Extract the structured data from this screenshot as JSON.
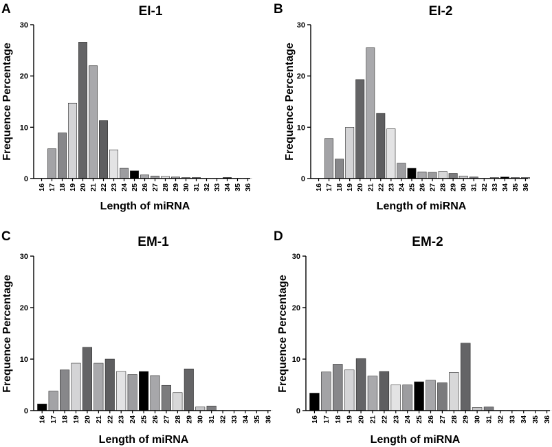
{
  "panels": [
    {
      "letter": "A",
      "chart_data": {
        "type": "bar",
        "title": "EI-1",
        "xlabel": "Length of miRNA",
        "ylabel": "Frequence Percentage",
        "ylim": [
          0,
          30
        ],
        "yticks": [
          "0",
          "10",
          "20",
          "30"
        ],
        "categories": [
          "16",
          "17",
          "18",
          "19",
          "20",
          "21",
          "22",
          "23",
          "24",
          "25",
          "26",
          "27",
          "28",
          "29",
          "30",
          "31",
          "32",
          "33",
          "34",
          "35",
          "36"
        ],
        "values": [
          0,
          5.8,
          8.9,
          14.7,
          26.6,
          22.0,
          11.3,
          5.6,
          2.0,
          1.5,
          0.7,
          0.5,
          0.4,
          0.3,
          0.2,
          0.2,
          0.1,
          0.1,
          0.2,
          0.1,
          0.1
        ],
        "colors": [
          "#d0d0d0",
          "#a3a3a6",
          "#87878a",
          "#d4d4d6",
          "#646466",
          "#a9a9ac",
          "#5e5e60",
          "#e3e3e4",
          "#9d9da0",
          "#000000",
          "#a7a7aa",
          "#9b9b9d",
          "#d8d8d9",
          "#9b9b9d",
          "#c6c6c8",
          "#7d7d80",
          "#d2d2d4",
          "#c8c8ca",
          "#000000",
          "#b4b4b6",
          "#a0a0a2"
        ]
      }
    },
    {
      "letter": "B",
      "chart_data": {
        "type": "bar",
        "title": "EI-2",
        "xlabel": "Length of miRNA",
        "ylabel": "Frequence Percentage",
        "ylim": [
          0,
          30
        ],
        "yticks": [
          "0",
          "10",
          "20",
          "30"
        ],
        "categories": [
          "16",
          "17",
          "18",
          "19",
          "20",
          "21",
          "22",
          "23",
          "24",
          "25",
          "26",
          "27",
          "28",
          "29",
          "30",
          "31",
          "32",
          "33",
          "34",
          "35",
          "36"
        ],
        "values": [
          0,
          7.8,
          3.8,
          10.0,
          19.3,
          25.5,
          12.7,
          9.7,
          3.0,
          2.0,
          1.3,
          1.2,
          1.4,
          1.0,
          0.5,
          0.3,
          0.1,
          0.2,
          0.3,
          0.2,
          0.2
        ],
        "colors": [
          "#d0d0d0",
          "#a3a3a6",
          "#87878a",
          "#d4d4d6",
          "#646466",
          "#a9a9ac",
          "#5e5e60",
          "#e3e3e4",
          "#9d9da0",
          "#000000",
          "#a7a7aa",
          "#9b9b9d",
          "#d8d8d9",
          "#7b7b7d",
          "#c6c6c8",
          "#7d7d80",
          "#d2d2d4",
          "#c8c8ca",
          "#000000",
          "#b4b4b6",
          "#a0a0a2"
        ]
      }
    },
    {
      "letter": "C",
      "chart_data": {
        "type": "bar",
        "title": "EM-1",
        "xlabel": "Length of miRNA",
        "ylabel": "Frequence Percentage",
        "ylim": [
          0,
          30
        ],
        "yticks": [
          "0",
          "10",
          "20",
          "30"
        ],
        "categories": [
          "16",
          "17",
          "18",
          "19",
          "20",
          "21",
          "22",
          "23",
          "24",
          "25",
          "26",
          "27",
          "28",
          "29",
          "30",
          "31",
          "32",
          "33",
          "34",
          "35",
          "36"
        ],
        "values": [
          1.3,
          3.8,
          7.9,
          9.2,
          12.3,
          9.2,
          10.0,
          7.6,
          7.0,
          7.6,
          6.8,
          4.9,
          3.5,
          8.1,
          0.7,
          0.9,
          0.1,
          0.1,
          0.05,
          0.05,
          0.05
        ],
        "colors": [
          "#000000",
          "#a3a3a6",
          "#87878a",
          "#d4d4d6",
          "#646466",
          "#a9a9ac",
          "#5e5e60",
          "#e3e3e4",
          "#9d9da0",
          "#000000",
          "#a7a7aa",
          "#7b7b7d",
          "#d8d8d9",
          "#646466",
          "#c6c6c8",
          "#7d7d80",
          "#d2d2d4",
          "#c8c8ca",
          "#b4b4b6",
          "#b4b4b6",
          "#a0a0a2"
        ]
      }
    },
    {
      "letter": "D",
      "chart_data": {
        "type": "bar",
        "title": "EM-2",
        "xlabel": "Length of miRNA",
        "ylabel": "Frequence Percentage",
        "ylim": [
          0,
          30
        ],
        "yticks": [
          "0",
          "10",
          "20",
          "30"
        ],
        "categories": [
          "16",
          "17",
          "18",
          "19",
          "20",
          "21",
          "22",
          "23",
          "24",
          "25",
          "26",
          "27",
          "28",
          "29",
          "30",
          "31",
          "32",
          "33",
          "34",
          "35",
          "36"
        ],
        "values": [
          3.4,
          7.5,
          9.0,
          7.9,
          10.1,
          6.7,
          7.6,
          5.0,
          5.0,
          5.6,
          5.9,
          5.4,
          7.4,
          13.1,
          0.6,
          0.7,
          0.1,
          0.1,
          0.05,
          0.05,
          0.05
        ],
        "colors": [
          "#000000",
          "#a3a3a6",
          "#87878a",
          "#d4d4d6",
          "#646466",
          "#a9a9ac",
          "#5e5e60",
          "#e3e3e4",
          "#9d9da0",
          "#000000",
          "#a7a7aa",
          "#7b7b7d",
          "#d8d8d9",
          "#646466",
          "#c6c6c8",
          "#7d7d80",
          "#d2d2d4",
          "#c8c8ca",
          "#b4b4b6",
          "#b4b4b6",
          "#a0a0a2"
        ]
      }
    }
  ]
}
